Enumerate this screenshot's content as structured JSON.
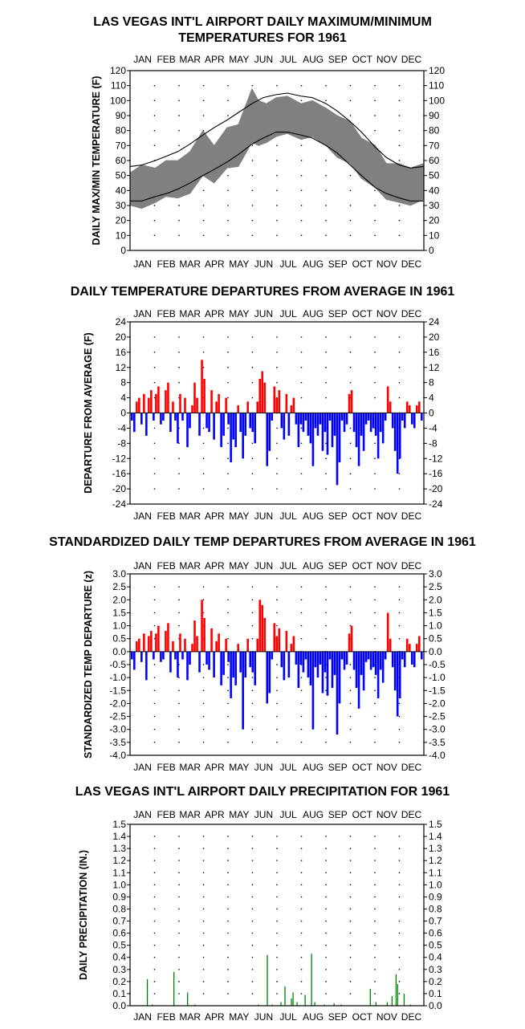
{
  "months": [
    "JAN",
    "FEB",
    "MAR",
    "APR",
    "MAY",
    "JUN",
    "JUL",
    "AUG",
    "SEP",
    "OCT",
    "NOV",
    "DEC"
  ],
  "colors": {
    "frame": "#000000",
    "band": "#808080",
    "positive": "#ff0000",
    "negative": "#0000ff",
    "precip": "#008000",
    "normals": "#000000"
  },
  "chart_data": [
    {
      "id": "maxmin",
      "type": "area",
      "title_lines": [
        "LAS VEGAS INT'L AIRPORT DAILY MAXIMUM/MINIMUM",
        "TEMPERATURES FOR 1961"
      ],
      "ylabel": "DAILY MAX/MIN TEMPERATURE (F)",
      "ylim": [
        0,
        120
      ],
      "yticks": [
        0,
        10,
        20,
        30,
        40,
        50,
        60,
        70,
        80,
        90,
        100,
        110,
        120
      ],
      "ytick_labels": [
        "0",
        "10",
        "20",
        "30",
        "40",
        "50",
        "60",
        "70",
        "80",
        "90",
        "100",
        "110",
        "120"
      ],
      "grid": "dotted",
      "days_in_year": 365,
      "series": [
        {
          "name": "",
          "role": "daily_max_estimate",
          "x": [
            1,
            15,
            32,
            45,
            60,
            75,
            91,
            105,
            121,
            135,
            152,
            160,
            170,
            182,
            196,
            213,
            227,
            244,
            258,
            274,
            288,
            305,
            319,
            335,
            349,
            365
          ],
          "values": [
            52,
            57,
            55,
            60,
            60,
            66,
            80,
            70,
            82,
            84,
            108,
            100,
            98,
            102,
            103,
            98,
            100,
            95,
            90,
            86,
            75,
            70,
            58,
            58,
            55,
            58
          ]
        },
        {
          "name": "",
          "role": "daily_min_estimate",
          "x": [
            1,
            15,
            32,
            45,
            60,
            75,
            91,
            105,
            121,
            135,
            152,
            160,
            170,
            182,
            196,
            213,
            227,
            244,
            258,
            274,
            288,
            305,
            319,
            335,
            349,
            365
          ],
          "values": [
            30,
            28,
            32,
            36,
            35,
            38,
            50,
            45,
            55,
            56,
            72,
            70,
            72,
            76,
            78,
            74,
            76,
            70,
            62,
            58,
            48,
            42,
            34,
            32,
            30,
            34
          ]
        },
        {
          "name": "",
          "role": "normal_max",
          "x": [
            1,
            15,
            32,
            46,
            60,
            75,
            91,
            105,
            121,
            135,
            152,
            166,
            182,
            196,
            213,
            227,
            244,
            258,
            274,
            288,
            305,
            319,
            335,
            349,
            365
          ],
          "values": [
            56,
            57,
            60,
            63,
            66,
            71,
            77,
            82,
            87,
            92,
            98,
            102,
            104,
            105,
            103,
            102,
            98,
            93,
            86,
            79,
            69,
            62,
            57,
            55,
            56
          ]
        },
        {
          "name": "",
          "role": "normal_min",
          "x": [
            1,
            15,
            32,
            46,
            60,
            75,
            91,
            105,
            121,
            135,
            152,
            166,
            182,
            196,
            213,
            227,
            244,
            258,
            274,
            288,
            305,
            319,
            335,
            349,
            365
          ],
          "values": [
            33,
            33,
            36,
            38,
            41,
            45,
            50,
            54,
            59,
            64,
            71,
            75,
            79,
            79,
            77,
            75,
            70,
            65,
            57,
            50,
            42,
            38,
            35,
            33,
            33
          ]
        }
      ]
    },
    {
      "id": "departures",
      "type": "bar",
      "title": "DAILY TEMPERATURE DEPARTURES FROM AVERAGE IN 1961",
      "ylabel": "DEPARTURE FROM AVERAGE (F)",
      "ylim": [
        -24,
        24
      ],
      "yticks": [
        -24,
        -20,
        -16,
        -12,
        -8,
        -4,
        0,
        4,
        8,
        12,
        16,
        20,
        24
      ],
      "ytick_labels": [
        "-24",
        "-20",
        "-16",
        "-12",
        "-8",
        "-4",
        "0",
        "4",
        "8",
        "12",
        "16",
        "20",
        "24"
      ],
      "grid": "dotted",
      "days_in_year": 365,
      "x": [
        3,
        6,
        9,
        12,
        15,
        18,
        21,
        24,
        27,
        30,
        33,
        36,
        39,
        42,
        45,
        48,
        51,
        54,
        57,
        60,
        63,
        66,
        69,
        72,
        75,
        78,
        81,
        84,
        87,
        90,
        93,
        96,
        99,
        102,
        105,
        108,
        111,
        114,
        117,
        120,
        123,
        126,
        129,
        132,
        135,
        138,
        141,
        144,
        147,
        150,
        153,
        156,
        159,
        162,
        165,
        168,
        171,
        174,
        177,
        180,
        183,
        186,
        189,
        192,
        195,
        198,
        201,
        204,
        207,
        210,
        213,
        216,
        219,
        222,
        225,
        228,
        231,
        234,
        237,
        240,
        243,
        246,
        249,
        252,
        255,
        258,
        261,
        264,
        267,
        270,
        273,
        276,
        279,
        282,
        285,
        288,
        291,
        294,
        297,
        300,
        303,
        306,
        309,
        312,
        315,
        318,
        321,
        324,
        327,
        330,
        333,
        336,
        339,
        342,
        345,
        348,
        351,
        354,
        357,
        360,
        363
      ],
      "values": [
        -2,
        -5,
        3,
        4,
        -3,
        5,
        -6,
        4,
        6,
        -2,
        5,
        7,
        -3,
        -2,
        6,
        8,
        -5,
        3,
        -2,
        -8,
        5,
        -2,
        4,
        -9,
        -4,
        2,
        8,
        4,
        -6,
        14,
        9,
        -4,
        -5,
        6,
        -7,
        3,
        5,
        -9,
        -6,
        4,
        -3,
        -13,
        -7,
        -9,
        2,
        -5,
        -12,
        -6,
        3,
        -4,
        -5,
        -8,
        3,
        9,
        11,
        8,
        -14,
        -10,
        -2,
        7,
        4,
        6,
        -4,
        -7,
        5,
        -6,
        2,
        4,
        -3,
        -9,
        -3,
        -5,
        -2,
        -6,
        -8,
        -14,
        -4,
        -6,
        -3,
        -10,
        -5,
        -11,
        -2,
        -9,
        -6,
        -19,
        -13,
        -2,
        -5,
        -3,
        5,
        6,
        -5,
        -9,
        -14,
        -6,
        -10,
        -3,
        -2,
        -5,
        -4,
        -6,
        -12,
        -5,
        -8,
        -2,
        7,
        3,
        -4,
        -10,
        -16,
        -12,
        -2,
        -4,
        3,
        2,
        -3,
        -4,
        2,
        3,
        -2
      ],
      "colors": {
        "positive": "#ff0000",
        "negative": "#0000ff"
      }
    },
    {
      "id": "standardized",
      "type": "bar",
      "title": "STANDARDIZED DAILY TEMP DEPARTURES FROM AVERAGE IN 1961",
      "ylabel": "STANDARDIZED TEMP DEPARTURE (z)",
      "ylim": [
        -4.0,
        3.0
      ],
      "yticks": [
        -4.0,
        -3.5,
        -3.0,
        -2.5,
        -2.0,
        -1.5,
        -1.0,
        -0.5,
        0.0,
        0.5,
        1.0,
        1.5,
        2.0,
        2.5,
        3.0
      ],
      "ytick_labels": [
        "-4.0",
        "-3.5",
        "-3.0",
        "-2.5",
        "-2.0",
        "-1.5",
        "-1.0",
        "-0.5",
        "0.0",
        "0.5",
        "1.0",
        "1.5",
        "2.0",
        "2.5",
        "3.0"
      ],
      "grid": "dotted",
      "days_in_year": 365,
      "x": [
        3,
        6,
        9,
        12,
        15,
        18,
        21,
        24,
        27,
        30,
        33,
        36,
        39,
        42,
        45,
        48,
        51,
        54,
        57,
        60,
        63,
        66,
        69,
        72,
        75,
        78,
        81,
        84,
        87,
        90,
        93,
        96,
        99,
        102,
        105,
        108,
        111,
        114,
        117,
        120,
        123,
        126,
        129,
        132,
        135,
        138,
        141,
        144,
        147,
        150,
        153,
        156,
        159,
        162,
        165,
        168,
        171,
        174,
        177,
        180,
        183,
        186,
        189,
        192,
        195,
        198,
        201,
        204,
        207,
        210,
        213,
        216,
        219,
        222,
        225,
        228,
        231,
        234,
        237,
        240,
        243,
        246,
        249,
        252,
        255,
        258,
        261,
        264,
        267,
        270,
        273,
        276,
        279,
        282,
        285,
        288,
        291,
        294,
        297,
        300,
        303,
        306,
        309,
        312,
        315,
        318,
        321,
        324,
        327,
        330,
        333,
        336,
        339,
        342,
        345,
        348,
        351,
        354,
        357,
        360,
        363
      ],
      "values": [
        -0.3,
        -0.7,
        0.4,
        0.5,
        -0.4,
        0.7,
        -1.1,
        0.6,
        0.8,
        -0.3,
        0.7,
        1.0,
        -0.4,
        -0.3,
        0.8,
        1.1,
        -0.8,
        0.4,
        -0.3,
        -1.0,
        0.7,
        -0.3,
        0.5,
        -1.1,
        -0.5,
        0.3,
        1.2,
        0.6,
        -0.8,
        2.0,
        1.3,
        -0.5,
        -0.7,
        0.9,
        -1.0,
        0.4,
        0.7,
        -1.3,
        -0.9,
        0.5,
        -0.4,
        -1.8,
        -1.0,
        -1.3,
        0.3,
        -0.8,
        -3.0,
        -1.0,
        0.5,
        -0.6,
        -0.8,
        -1.3,
        0.5,
        2.0,
        1.8,
        1.3,
        -2.0,
        -1.6,
        -0.3,
        1.1,
        0.6,
        0.9,
        -0.6,
        -1.1,
        0.8,
        -1.0,
        0.3,
        0.6,
        -0.5,
        -1.4,
        -0.5,
        -0.8,
        -0.3,
        -1.0,
        -1.3,
        -3.0,
        -0.6,
        -1.0,
        -0.5,
        -1.6,
        -0.8,
        -1.7,
        -0.3,
        -1.4,
        -0.9,
        -3.2,
        -2.0,
        -0.3,
        -0.7,
        -0.5,
        0.7,
        1.0,
        -0.7,
        -1.4,
        -2.2,
        -0.9,
        -1.5,
        -0.4,
        -0.3,
        -0.7,
        -0.6,
        -0.9,
        -1.8,
        -0.7,
        -1.2,
        -0.3,
        1.5,
        0.5,
        -0.6,
        -1.5,
        -2.5,
        -1.8,
        -0.3,
        -0.6,
        0.5,
        0.3,
        -0.5,
        -0.6,
        0.3,
        0.6,
        -0.3
      ],
      "colors": {
        "positive": "#ff0000",
        "negative": "#0000ff"
      }
    },
    {
      "id": "precip",
      "type": "bar",
      "title": "LAS VEGAS INT'L AIRPORT DAILY PRECIPITATION FOR 1961",
      "ylabel": "DAILY PRECIPITATION (IN.)",
      "ylim": [
        0.0,
        1.5
      ],
      "yticks": [
        0.0,
        0.1,
        0.2,
        0.3,
        0.4,
        0.5,
        0.6,
        0.7,
        0.8,
        0.9,
        1.0,
        1.1,
        1.2,
        1.3,
        1.4,
        1.5
      ],
      "ytick_labels": [
        "0.0",
        "0.1",
        "0.2",
        "0.3",
        "0.4",
        "0.5",
        "0.6",
        "0.7",
        "0.8",
        "0.9",
        "1.0",
        "1.1",
        "1.2",
        "1.3",
        "1.4",
        "1.5"
      ],
      "grid": "dotted",
      "days_in_year": 365,
      "x": [
        22,
        28,
        55,
        72,
        81,
        160,
        171,
        177,
        188,
        193,
        201,
        203,
        208,
        218,
        226,
        230,
        242,
        254,
        263,
        299,
        306,
        320,
        326,
        331,
        333,
        341,
        349
      ],
      "values": [
        0.22,
        0.01,
        0.28,
        0.11,
        0.01,
        0.01,
        0.42,
        0.01,
        0.03,
        0.16,
        0.06,
        0.11,
        0.03,
        0.09,
        0.43,
        0.03,
        0.01,
        0.02,
        0.01,
        0.14,
        0.03,
        0.03,
        0.08,
        0.26,
        0.18,
        0.1,
        0.01
      ],
      "colors": {
        "bar": "#008000"
      }
    }
  ]
}
